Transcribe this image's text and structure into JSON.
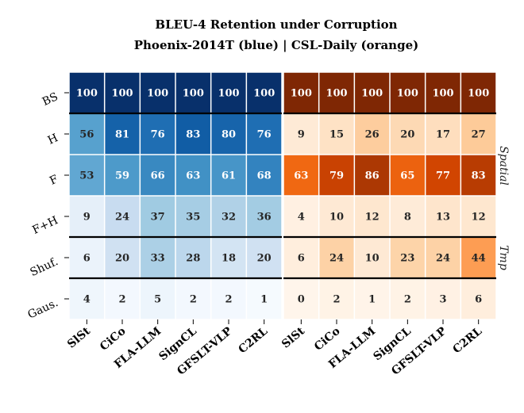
{
  "chart_data": {
    "type": "heatmap",
    "title": "BLEU-4 Retention under Corruption",
    "subtitle": "Phoenix-2014T (blue) | CSL-Daily (orange)",
    "rows": [
      "BS",
      "H",
      "F",
      "F+H",
      "Shuf.",
      "Gaus."
    ],
    "side_groups": [
      {
        "label": "Spatial",
        "rows": [
          "H",
          "F",
          "F+H"
        ]
      },
      {
        "label": "Tmp",
        "rows": [
          "Shuf.",
          "Gaus."
        ]
      }
    ],
    "panels": [
      {
        "dataset": "Phoenix-2014T",
        "colormap": "blue",
        "columns": [
          "SlSt",
          "CiCo",
          "FLA-LLM",
          "SignCL",
          "GFSLT-VLP",
          "C2RL"
        ],
        "values": [
          [
            100,
            100,
            100,
            100,
            100,
            100
          ],
          [
            56,
            81,
            76,
            83,
            80,
            76
          ],
          [
            53,
            59,
            66,
            63,
            61,
            68
          ],
          [
            9,
            24,
            37,
            35,
            32,
            36
          ],
          [
            6,
            20,
            33,
            28,
            18,
            20
          ],
          [
            4,
            2,
            5,
            2,
            2,
            1
          ]
        ]
      },
      {
        "dataset": "CSL-Daily",
        "colormap": "orange",
        "columns": [
          "SlSt",
          "CiCo",
          "FLA-LLM",
          "SignCL",
          "GFSLT-VLP",
          "C2RL"
        ],
        "values": [
          [
            100,
            100,
            100,
            100,
            100,
            100
          ],
          [
            9,
            15,
            26,
            20,
            17,
            27
          ],
          [
            63,
            79,
            86,
            65,
            77,
            83
          ],
          [
            4,
            10,
            12,
            8,
            13,
            12
          ],
          [
            6,
            24,
            10,
            23,
            24,
            44
          ],
          [
            0,
            2,
            1,
            2,
            3,
            6
          ]
        ]
      }
    ],
    "value_range": [
      0,
      100
    ],
    "group_separators_after_rows": [
      "BS",
      "F+H",
      "Shuf."
    ],
    "colors": {
      "blue_low": "#f7fbff",
      "blue_high": "#08306b",
      "orange_low": "#fff5eb",
      "orange_high": "#7f2704"
    }
  }
}
